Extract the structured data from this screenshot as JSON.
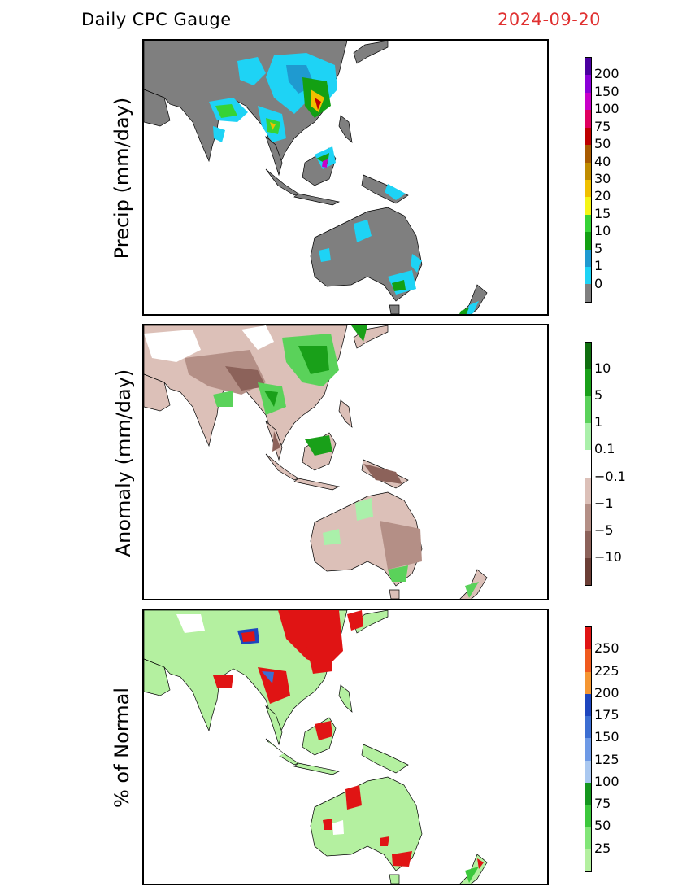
{
  "header": {
    "title": "Daily CPC Gauge",
    "date": "2024-09-20"
  },
  "panels": [
    {
      "id": "precip",
      "ylabel": "Precip (mm/day)",
      "colorbar": {
        "colors": [
          "#7f7f7f",
          "#1ed3f5",
          "#1f9ad0",
          "#13a013",
          "#36d336",
          "#f5f516",
          "#f0c000",
          "#c08c00",
          "#a85a00",
          "#be0000",
          "#e00060",
          "#c800c8",
          "#8a00d8",
          "#4a00a0"
        ],
        "labels": [
          "0",
          "1",
          "5",
          "10",
          "15",
          "20",
          "30",
          "40",
          "50",
          "75",
          "100",
          "150",
          "200"
        ]
      }
    },
    {
      "id": "anomaly",
      "ylabel": "Anomaly (mm/day)",
      "colorbar": {
        "colors": [
          "#6b3e36",
          "#8c625a",
          "#b48f86",
          "#dcc0b8",
          "#ffffff",
          "#aaf0aa",
          "#5ad25a",
          "#19a019",
          "#0f6e0f"
        ],
        "labels": [
          "−10",
          "−5",
          "−1",
          "−0.1",
          "0.1",
          "1",
          "5",
          "10"
        ]
      }
    },
    {
      "id": "percent",
      "ylabel": "% of Normal",
      "colorbar": {
        "colors": [
          "#b4f0a0",
          "#82e678",
          "#3cc83c",
          "#14961e",
          "#aac8f0",
          "#6e9ae6",
          "#3c6ed2",
          "#1e46be",
          "#f59632",
          "#f05a1e",
          "#e01414"
        ],
        "labels": [
          "25",
          "50",
          "75",
          "100",
          "125",
          "150",
          "175",
          "200",
          "225",
          "250"
        ]
      }
    }
  ]
}
